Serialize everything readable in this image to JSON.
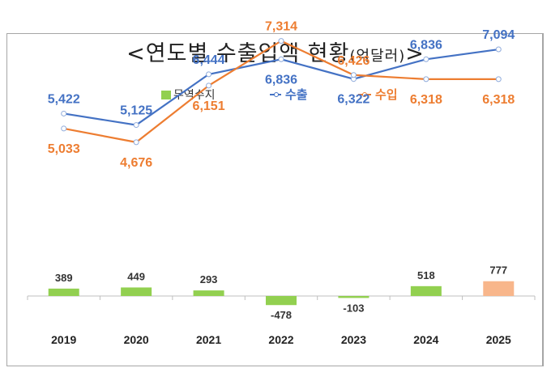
{
  "chart_data": {
    "type": "line+bar",
    "title": "<연도별 수출입액 현황",
    "title_unit": "(억달러)",
    "title_close": ">",
    "categories": [
      "2019",
      "2020",
      "2021",
      "2022",
      "2023",
      "2024",
      "2025"
    ],
    "series": [
      {
        "name": "수출",
        "type": "line",
        "legend_label": "수출",
        "color": "#4472c4",
        "values": [
          5422,
          5125,
          6444,
          6836,
          6322,
          6836,
          7094
        ],
        "labels": [
          "5,422",
          "5,125",
          "6,444",
          "6,836",
          "6,322",
          "6,836",
          "7,094"
        ]
      },
      {
        "name": "수입",
        "type": "line",
        "legend_label": "수입",
        "color": "#ed7d31",
        "values": [
          5033,
          4676,
          6151,
          7314,
          6426,
          6318,
          6318
        ],
        "labels": [
          "5,033",
          "4,676",
          "6,151",
          "7,314",
          "6,426",
          "6,318",
          "6,318"
        ]
      },
      {
        "name": "무역수지",
        "type": "bar",
        "legend_label": "무역수지",
        "color": "#92d050",
        "highlight_color": "#f8b68b",
        "highlight_index": 6,
        "values": [
          389,
          449,
          293,
          -478,
          -103,
          518,
          777
        ],
        "labels": [
          "389",
          "449",
          "293",
          "-478",
          "-103",
          "518",
          "777"
        ]
      }
    ],
    "grid": false,
    "legend_position": "top-center"
  }
}
